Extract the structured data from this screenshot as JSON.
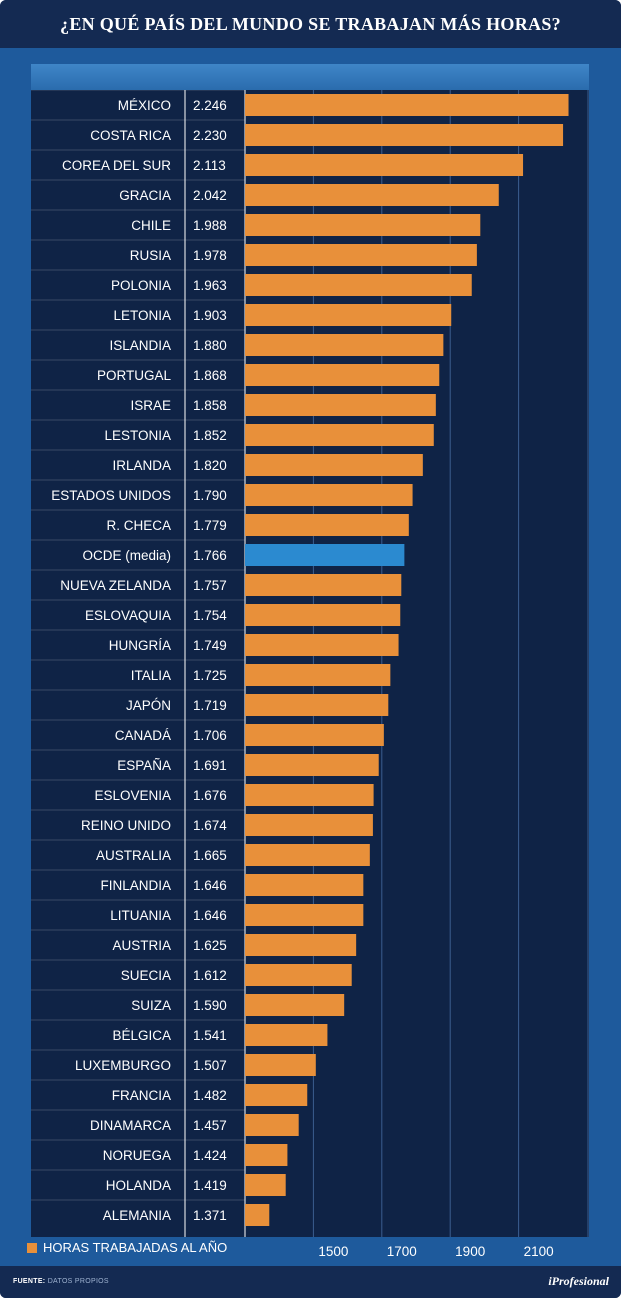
{
  "title": "¿EN QUÉ PAÍS DEL MUNDO SE TRABAJAN MÁS HORAS?",
  "footer": {
    "source_label": "FUENTE:",
    "source_value": "DATOS PROPIOS",
    "brand": "iProfesional"
  },
  "colors": {
    "bar": "#e8903a",
    "highlight": "#2b8ad0",
    "panel": "#0f2346",
    "band": "#1e5a9c"
  },
  "chart_data": {
    "type": "bar",
    "orientation": "horizontal",
    "title": "¿EN QUÉ PAÍS DEL MUNDO SE TRABAJAN MÁS HORAS?",
    "legend": "HORAS TRABAJADAS AL AÑO",
    "xlim": [
      1300,
      2300
    ],
    "xticks": [
      1500,
      1700,
      1900,
      2100
    ],
    "grid": true,
    "highlight": "OCDE (media)",
    "categories": [
      "MÉXICO",
      "COSTA RICA",
      "COREA DEL SUR",
      "GRACIA",
      "CHILE",
      "RUSIA",
      "POLONIA",
      "LETONIA",
      "ISLANDIA",
      "PORTUGAL",
      "ISRAE",
      "LESTONIA",
      "IRLANDA",
      "ESTADOS UNIDOS",
      "R. CHECA",
      "OCDE (media)",
      "NUEVA ZELANDA",
      "ESLOVAQUIA",
      "HUNGRÍA",
      "ITALIA",
      "JAPÓN",
      "CANADÁ",
      "ESPAÑA",
      "ESLOVENIA",
      "REINO UNIDO",
      "AUSTRALIA",
      "FINLANDIA",
      "LITUANIA",
      "AUSTRIA",
      "SUECIA",
      "SUIZA",
      "BÉLGICA",
      "LUXEMBURGO",
      "FRANCIA",
      "DINAMARCA",
      "NORUEGA",
      "HOLANDA",
      "ALEMANIA"
    ],
    "values": [
      2246,
      2230,
      2113,
      2042,
      1988,
      1978,
      1963,
      1903,
      1880,
      1868,
      1858,
      1852,
      1820,
      1790,
      1779,
      1766,
      1757,
      1754,
      1749,
      1725,
      1719,
      1706,
      1691,
      1676,
      1674,
      1665,
      1646,
      1646,
      1625,
      1612,
      1590,
      1541,
      1507,
      1482,
      1457,
      1424,
      1419,
      1371
    ],
    "value_labels": [
      "2.246",
      "2.230",
      "2.113",
      "2.042",
      "1.988",
      "1.978",
      "1.963",
      "1.903",
      "1.880",
      "1.868",
      "1.858",
      "1.852",
      "1.820",
      "1.790",
      "1.779",
      "1.766",
      "1.757",
      "1.754",
      "1.749",
      "1.725",
      "1.719",
      "1.706",
      "1.691",
      "1.676",
      "1.674",
      "1.665",
      "1.646",
      "1.646",
      "1.625",
      "1.612",
      "1.590",
      "1.541",
      "1.507",
      "1.482",
      "1.457",
      "1.424",
      "1.419",
      "1.371"
    ]
  }
}
